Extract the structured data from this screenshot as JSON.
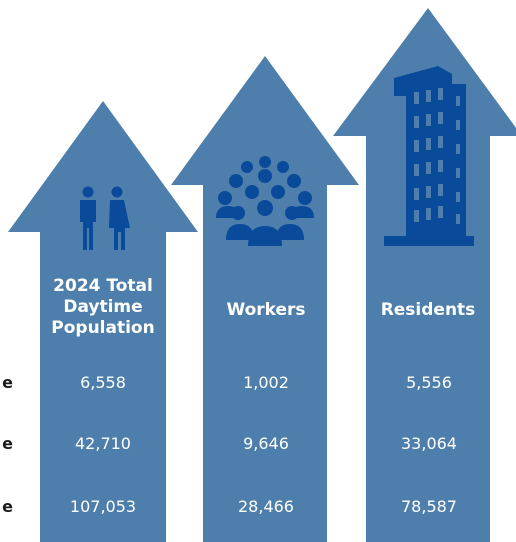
{
  "colors": {
    "arrow": "#4e7fac",
    "icon": "#0a4a9a",
    "text_on_arrow": "#ffffff",
    "row_label": "#1a1a1a"
  },
  "icons": [
    "people-pair-icon",
    "crowd-icon",
    "building-icon"
  ],
  "row_labels": [
    "e",
    "e",
    "e"
  ],
  "chart_data": {
    "type": "table",
    "title": "",
    "columns": [
      "2024 Total Daytime Population",
      "Workers",
      "Residents"
    ],
    "rows": [
      {
        "label": "e",
        "values": [
          "6,558",
          "1,002",
          "5,556"
        ]
      },
      {
        "label": "e",
        "values": [
          "42,710",
          "9,646",
          "33,064"
        ]
      },
      {
        "label": "e",
        "values": [
          "107,053",
          "28,466",
          "78,587"
        ]
      }
    ]
  }
}
